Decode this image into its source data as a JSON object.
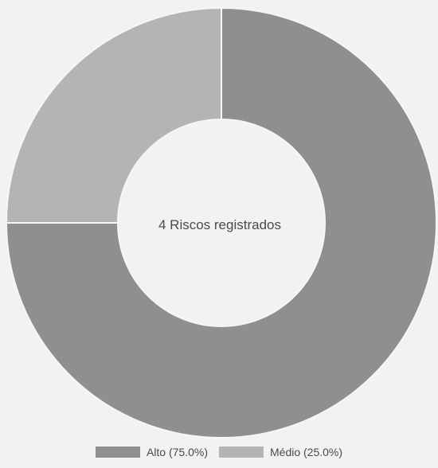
{
  "chart_data": {
    "type": "pie",
    "donut": true,
    "center_text": "4 Riscos registrados",
    "slices": [
      {
        "label": "Alto",
        "legend_text": "Alto (75.0%)",
        "value": 75.0,
        "color": "#8f8f8f"
      },
      {
        "label": "Médio",
        "legend_text": "Médio (25.0%)",
        "value": 25.0,
        "color": "#b4b4b4"
      }
    ],
    "legend_placement": "bottom"
  }
}
